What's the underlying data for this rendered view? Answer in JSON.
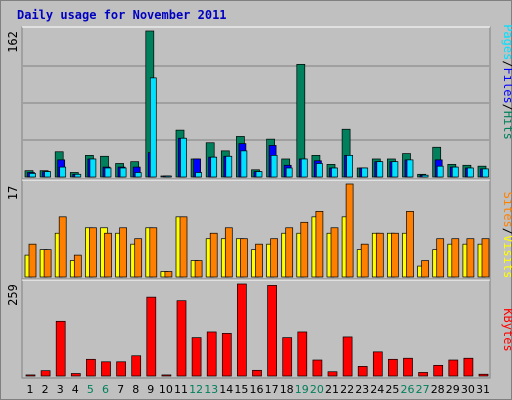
{
  "title": "Daily usage for November 2011",
  "colors": {
    "hits": "#00805c",
    "files": "#0000ff",
    "pages": "#00e0ff",
    "visits": "#ffff00",
    "sites": "#ff8000",
    "kbytes": "#ff0000",
    "weekend": "#00805c",
    "weekday": "#000000",
    "separator_pages": "#000000"
  },
  "chart_data": [
    {
      "type": "bar",
      "panel": "top",
      "scale_label": "162",
      "ylim": [
        0,
        162
      ],
      "legend_right": [
        {
          "text": "Pages",
          "color": "#00e0ff"
        },
        {
          "text": "/",
          "color": "#000000"
        },
        {
          "text": "Files",
          "color": "#0000ff"
        },
        {
          "text": "/",
          "color": "#000000"
        },
        {
          "text": "Hits",
          "color": "#00805c"
        }
      ],
      "categories": [
        "1",
        "2",
        "3",
        "4",
        "5",
        "6",
        "7",
        "8",
        "9",
        "10",
        "11",
        "12",
        "13",
        "14",
        "15",
        "16",
        "17",
        "18",
        "19",
        "20",
        "21",
        "22",
        "23",
        "24",
        "25",
        "26",
        "27",
        "28",
        "29",
        "30",
        "31"
      ],
      "series": [
        {
          "name": "Hits",
          "values": [
            7,
            7,
            28,
            5,
            24,
            23,
            15,
            17,
            162,
            1,
            52,
            20,
            38,
            29,
            45,
            8,
            42,
            20,
            125,
            24,
            14,
            53,
            10,
            20,
            20,
            26,
            3,
            33,
            14,
            13,
            12
          ]
        },
        {
          "name": "Files",
          "values": [
            5,
            6,
            19,
            3,
            20,
            11,
            11,
            11,
            27,
            1,
            43,
            20,
            22,
            23,
            37,
            6,
            35,
            13,
            20,
            18,
            10,
            24,
            10,
            17,
            17,
            19,
            2,
            19,
            11,
            10,
            9
          ]
        },
        {
          "name": "Pages",
          "values": [
            4,
            6,
            11,
            3,
            20,
            10,
            10,
            5,
            110,
            1,
            43,
            5,
            22,
            23,
            29,
            6,
            24,
            10,
            20,
            15,
            10,
            24,
            10,
            17,
            17,
            19,
            2,
            12,
            11,
            10,
            9
          ]
        }
      ]
    },
    {
      "type": "bar",
      "panel": "middle",
      "scale_label": "17",
      "ylim": [
        0,
        17
      ],
      "legend_right": [
        {
          "text": "Sites",
          "color": "#ff8000"
        },
        {
          "text": "/",
          "color": "#000000"
        },
        {
          "text": "Visits",
          "color": "#ffff00"
        }
      ],
      "categories": [
        "1",
        "2",
        "3",
        "4",
        "5",
        "6",
        "7",
        "8",
        "9",
        "10",
        "11",
        "12",
        "13",
        "14",
        "15",
        "16",
        "17",
        "18",
        "19",
        "20",
        "21",
        "22",
        "23",
        "24",
        "25",
        "26",
        "27",
        "28",
        "29",
        "30",
        "31"
      ],
      "series": [
        {
          "name": "Visits",
          "values": [
            4,
            5,
            8,
            3,
            9,
            9,
            8,
            6,
            9,
            1,
            11,
            3,
            7,
            7,
            7,
            5,
            6,
            8,
            8,
            11,
            8,
            11,
            5,
            8,
            8,
            8,
            2,
            5,
            6,
            6,
            6
          ]
        },
        {
          "name": "Sites",
          "values": [
            6,
            5,
            11,
            4,
            9,
            8,
            9,
            7,
            9,
            1,
            11,
            3,
            8,
            9,
            7,
            6,
            7,
            9,
            10,
            12,
            9,
            17,
            6,
            8,
            8,
            12,
            3,
            7,
            7,
            7,
            7
          ]
        }
      ]
    },
    {
      "type": "bar",
      "panel": "bottom",
      "scale_label": "259",
      "ylim": [
        0,
        259
      ],
      "legend_right": [
        {
          "text": "KBytes",
          "color": "#ff0000"
        }
      ],
      "categories": [
        "1",
        "2",
        "3",
        "4",
        "5",
        "6",
        "7",
        "8",
        "9",
        "10",
        "11",
        "12",
        "13",
        "14",
        "15",
        "16",
        "17",
        "18",
        "19",
        "20",
        "21",
        "22",
        "23",
        "24",
        "25",
        "26",
        "27",
        "28",
        "29",
        "30",
        "31"
      ],
      "series": [
        {
          "name": "KBytes",
          "values": [
            3,
            15,
            154,
            7,
            47,
            40,
            40,
            57,
            222,
            3,
            212,
            108,
            124,
            120,
            259,
            16,
            255,
            108,
            124,
            45,
            12,
            110,
            27,
            68,
            47,
            50,
            10,
            30,
            45,
            50,
            5
          ]
        }
      ]
    }
  ],
  "x_axis": {
    "labels": [
      "1",
      "2",
      "3",
      "4",
      "5",
      "6",
      "7",
      "8",
      "9",
      "10",
      "11",
      "12",
      "13",
      "14",
      "15",
      "16",
      "17",
      "18",
      "19",
      "20",
      "21",
      "22",
      "23",
      "24",
      "25",
      "26",
      "27",
      "28",
      "29",
      "30",
      "31"
    ],
    "weekend_days": [
      "5",
      "6",
      "12",
      "13",
      "19",
      "20",
      "26",
      "27"
    ]
  }
}
